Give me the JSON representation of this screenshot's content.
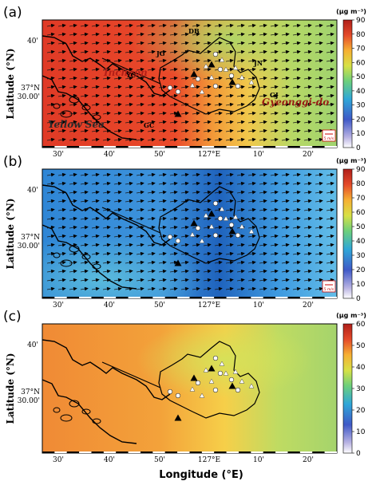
{
  "figure": {
    "x_axis_label": "Longitude (°E)",
    "y_axis_label": "Latitude (°N)",
    "x_tick_labels": [
      "30'",
      "40'",
      "50'",
      "127°E",
      "10'",
      "20'"
    ],
    "y_tick_labels": [
      "40'",
      "37°N\n30.00'"
    ],
    "panels": [
      {
        "letter": "(a)",
        "colorbar": {
          "unit": "(μg m⁻³)",
          "ticks": [
            "90",
            "80",
            "70",
            "60",
            "50",
            "40",
            "30",
            "20",
            "10",
            "0"
          ],
          "max": 90
        },
        "field": {
          "palette": "warm",
          "description_colors": [
            "#e8402a",
            "#f2a93a",
            "#a9d46a"
          ]
        },
        "place_labels": [
          "Incheon",
          "Gyeonggi-do",
          "Yellow Sea"
        ],
        "site_labels": [
          "DB",
          "JG",
          "JN",
          "YC",
          "GJ",
          "GC"
        ],
        "wind_scale_label": "5 m/s",
        "show_wind_vectors": true
      },
      {
        "letter": "(b)",
        "colorbar": {
          "unit": "(μg m⁻³)",
          "ticks": [
            "90",
            "80",
            "70",
            "60",
            "50",
            "40",
            "30",
            "20",
            "10",
            "0"
          ],
          "max": 90
        },
        "field": {
          "palette": "cool",
          "description_colors": [
            "#2e7bd0",
            "#4aa6e6",
            "#1e5fb8"
          ]
        },
        "place_labels": [],
        "site_labels": [],
        "wind_scale_label": "5 m/s",
        "show_wind_vectors": true
      },
      {
        "letter": "(c)",
        "colorbar": {
          "unit": "(μg m⁻³)",
          "ticks": [
            "60",
            "50",
            "40",
            "30",
            "20",
            "10",
            "0"
          ],
          "max": 60
        },
        "field": {
          "palette": "mixed",
          "description_colors": [
            "#f29a3a",
            "#f5c542",
            "#a8d46a"
          ]
        },
        "place_labels": [],
        "site_labels": [],
        "wind_scale_label": "",
        "show_wind_vectors": false
      }
    ]
  }
}
